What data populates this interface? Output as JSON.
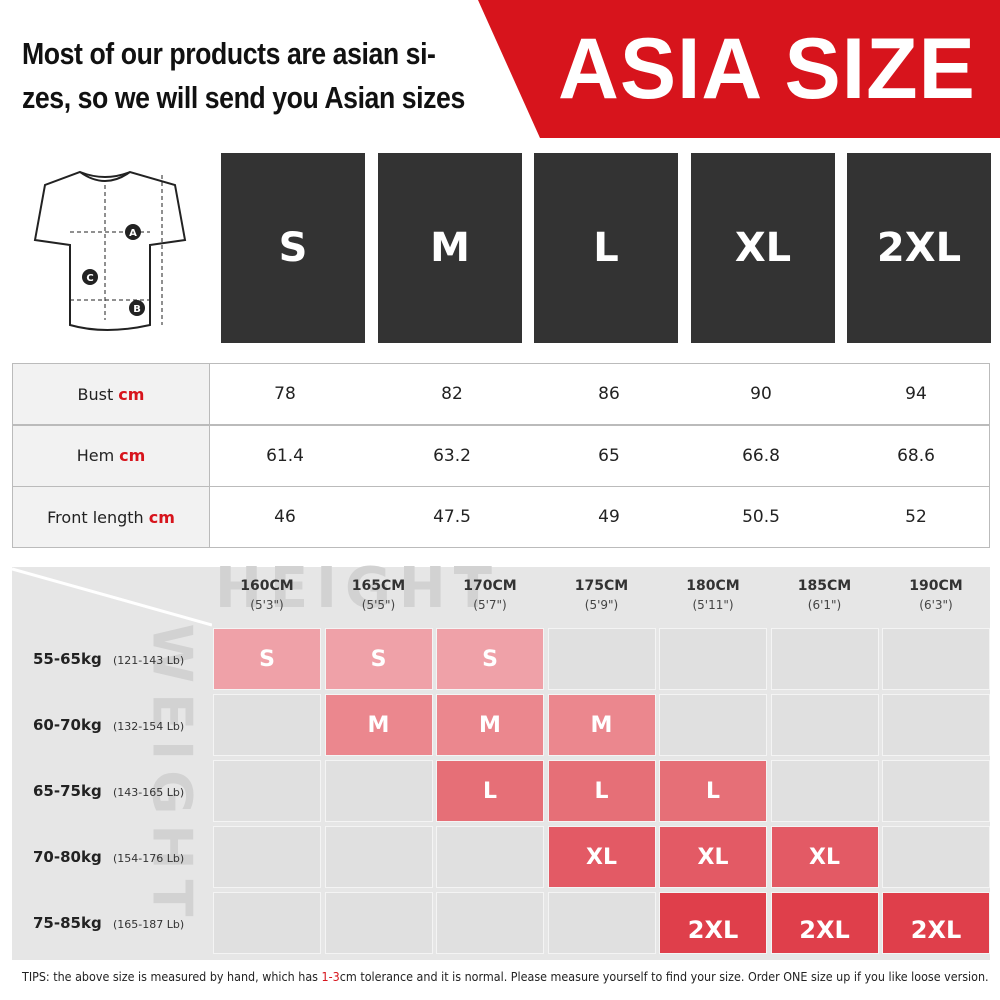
{
  "header": {
    "lines": [
      "Most of our products are asian si-",
      "zes, so we will send you Asian sizes"
    ],
    "badge": "ASIA SIZE"
  },
  "diagram": {
    "labels": [
      "A",
      "B",
      "C"
    ]
  },
  "sizes": [
    "S",
    "M",
    "L",
    "XL",
    "2XL"
  ],
  "measurements": {
    "unit": "cm",
    "rows": [
      {
        "label": "Bust",
        "values": [
          78,
          82,
          86,
          90,
          94
        ]
      },
      {
        "label": "Hem",
        "values": [
          61.4,
          63.2,
          65,
          66.8,
          68.6
        ]
      },
      {
        "label": "Front length",
        "values": [
          46,
          47.5,
          49,
          50.5,
          52
        ]
      }
    ]
  },
  "fit": {
    "height_label": "HEIGHT",
    "weight_label": "WEIGHT",
    "heights": [
      {
        "cm": "160CM",
        "ft": "(5'3\")"
      },
      {
        "cm": "165CM",
        "ft": "(5'5\")"
      },
      {
        "cm": "170CM",
        "ft": "(5'7\")"
      },
      {
        "cm": "175CM",
        "ft": "(5'9\")"
      },
      {
        "cm": "180CM",
        "ft": "(5'11\")"
      },
      {
        "cm": "185CM",
        "ft": "(6'1\")"
      },
      {
        "cm": "190CM",
        "ft": "(6'3\")"
      }
    ],
    "weights": [
      {
        "kg": "55-65kg",
        "lb": "(121-143 Lb)",
        "cells": [
          "S",
          "S",
          "S",
          null,
          null,
          null,
          null
        ]
      },
      {
        "kg": "60-70kg",
        "lb": "(132-154 Lb)",
        "cells": [
          null,
          "M",
          "M",
          "M",
          null,
          null,
          null
        ]
      },
      {
        "kg": "65-75kg",
        "lb": "(143-165 Lb)",
        "cells": [
          null,
          null,
          "L",
          "L",
          "L",
          null,
          null
        ]
      },
      {
        "kg": "70-80kg",
        "lb": "(154-176 Lb)",
        "cells": [
          null,
          null,
          null,
          "XL",
          "XL",
          "XL",
          null
        ]
      },
      {
        "kg": "75-85kg",
        "lb": "(165-187 Lb)",
        "cells": [
          null,
          null,
          null,
          null,
          "2XL",
          "2XL",
          "2XL"
        ]
      }
    ]
  },
  "tips": {
    "prefix": "TIPS:  the above size is measured by hand, which has ",
    "highlight": "1-3",
    "suffix": "cm tolerance and it is normal. Please measure yourself to find your size. Order ONE size up if you like loose version."
  }
}
